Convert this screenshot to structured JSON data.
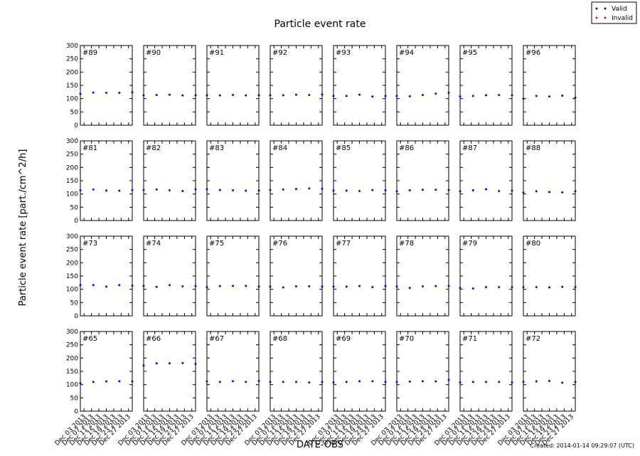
{
  "chart_data": {
    "type": "scatter",
    "title": "Particle event rate",
    "xlabel": "DATE-OBS",
    "ylabel": "Particle event rate [part./cm^2/h]",
    "footnote": "Created: 2014-01-14 09:29:07 (UTC)",
    "legend": [
      {
        "name": "Valid",
        "color": "#0000ff"
      },
      {
        "name": "Invalid",
        "color": "#ff0000"
      }
    ],
    "xlim": [
      "2013-12-01",
      "2013-12-29"
    ],
    "xticks": [
      {
        "value": "2013-12-03",
        "label": "Dec 03 2013"
      },
      {
        "value": "2013-12-07",
        "label": "Dec 07 2013"
      },
      {
        "value": "2013-12-11",
        "label": "Dec 11 2013"
      },
      {
        "value": "2013-12-15",
        "label": "Dec 15 2013"
      },
      {
        "value": "2013-12-19",
        "label": "Dec 19 2013"
      },
      {
        "value": "2013-12-23",
        "label": "Dec 23 2013"
      },
      {
        "value": "2013-12-27",
        "label": "Dec 27 2013"
      }
    ],
    "ylim": [
      0,
      300
    ],
    "yticks": [
      0,
      50,
      100,
      150,
      200,
      250,
      300
    ],
    "x": [
      "2013-12-01",
      "2013-12-08",
      "2013-12-15",
      "2013-12-22",
      "2013-12-29"
    ],
    "panels": [
      {
        "label": "#89",
        "values": [
          118,
          123,
          122,
          122,
          124
        ]
      },
      {
        "label": "#90",
        "values": [
          112,
          114,
          115,
          112,
          113
        ]
      },
      {
        "label": "#91",
        "values": [
          113,
          112,
          114,
          112,
          113
        ]
      },
      {
        "label": "#92",
        "values": [
          113,
          113,
          115,
          114,
          116
        ]
      },
      {
        "label": "#93",
        "values": [
          110,
          110,
          115,
          108,
          110
        ]
      },
      {
        "label": "#94",
        "values": [
          110,
          109,
          114,
          119,
          122
        ]
      },
      {
        "label": "#95",
        "values": [
          108,
          110,
          113,
          114,
          113
        ]
      },
      {
        "label": "#96",
        "values": [
          100,
          110,
          108,
          111,
          104
        ]
      },
      {
        "label": "#81",
        "values": [
          114,
          117,
          113,
          112,
          115
        ]
      },
      {
        "label": "#82",
        "values": [
          115,
          117,
          114,
          111,
          118
        ]
      },
      {
        "label": "#83",
        "values": [
          118,
          115,
          114,
          112,
          113
        ]
      },
      {
        "label": "#84",
        "values": [
          115,
          117,
          119,
          121,
          120
        ]
      },
      {
        "label": "#85",
        "values": [
          113,
          113,
          111,
          115,
          114
        ]
      },
      {
        "label": "#86",
        "values": [
          110,
          114,
          116,
          116,
          115
        ]
      },
      {
        "label": "#87",
        "values": [
          110,
          114,
          118,
          111,
          112
        ]
      },
      {
        "label": "#88",
        "values": [
          105,
          110,
          107,
          106,
          110
        ]
      },
      {
        "label": "#73",
        "values": [
          116,
          116,
          110,
          116,
          114
        ]
      },
      {
        "label": "#74",
        "values": [
          113,
          109,
          116,
          111,
          112
        ]
      },
      {
        "label": "#75",
        "values": [
          108,
          112,
          113,
          113,
          110
        ]
      },
      {
        "label": "#76",
        "values": [
          110,
          107,
          111,
          111,
          110
        ]
      },
      {
        "label": "#77",
        "values": [
          110,
          110,
          112,
          108,
          112
        ]
      },
      {
        "label": "#78",
        "values": [
          110,
          105,
          111,
          112,
          113
        ]
      },
      {
        "label": "#79",
        "values": [
          105,
          103,
          108,
          108,
          108
        ]
      },
      {
        "label": "#80",
        "values": [
          108,
          108,
          107,
          109,
          108
        ]
      },
      {
        "label": "#65",
        "values": [
          105,
          110,
          112,
          113,
          112
        ]
      },
      {
        "label": "#66",
        "values": [
          172,
          180,
          180,
          181,
          178
        ]
      },
      {
        "label": "#67",
        "values": [
          112,
          110,
          113,
          110,
          114
        ]
      },
      {
        "label": "#68",
        "values": [
          110,
          110,
          110,
          108,
          110
        ]
      },
      {
        "label": "#69",
        "values": [
          108,
          110,
          113,
          113,
          110
        ]
      },
      {
        "label": "#70",
        "values": [
          110,
          111,
          113,
          112,
          118
        ]
      },
      {
        "label": "#71",
        "values": [
          108,
          110,
          110,
          110,
          108
        ]
      },
      {
        "label": "#72",
        "values": [
          110,
          112,
          114,
          107,
          110
        ]
      }
    ]
  }
}
